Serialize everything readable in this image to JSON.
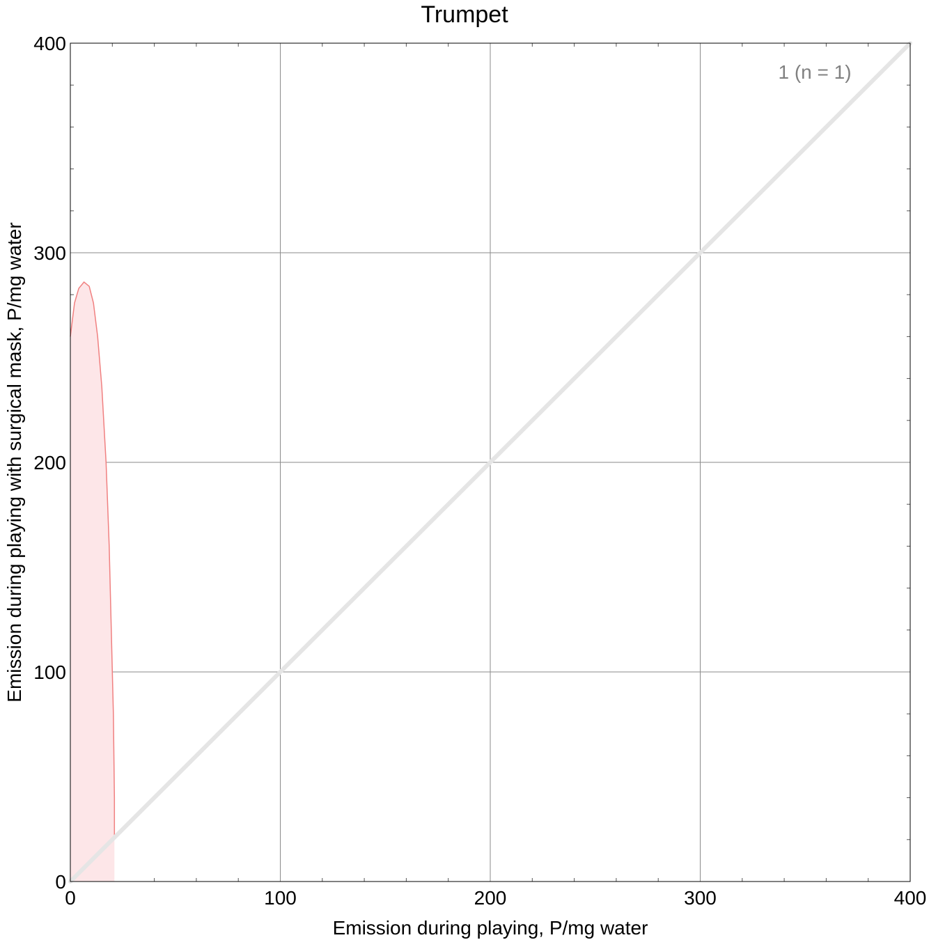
{
  "chart_data": {
    "type": "area",
    "title": "Trumpet",
    "xlabel": "Emission during playing,   P/mg water",
    "ylabel": "Emission during playing with surgical mask,   P/mg water",
    "xlim": [
      0,
      400
    ],
    "ylim": [
      0,
      400
    ],
    "x_ticks": [
      0,
      100,
      200,
      300,
      400
    ],
    "y_ticks": [
      0,
      100,
      200,
      300,
      400
    ],
    "grid": true,
    "annotation": "1  (n = 1)",
    "reference_line": {
      "from": [
        0,
        0
      ],
      "to": [
        400,
        400
      ],
      "color": "#e5e5e5"
    },
    "series": [
      {
        "name": "1  (n = 1)",
        "color": "#f08080",
        "fill": "#fde6e8",
        "outline": [
          [
            0,
            0
          ],
          [
            0,
            260
          ],
          [
            2,
            276
          ],
          [
            4,
            283
          ],
          [
            6.5,
            286
          ],
          [
            9,
            284
          ],
          [
            11,
            276
          ],
          [
            13,
            260
          ],
          [
            15,
            236
          ],
          [
            17,
            200
          ],
          [
            18.5,
            160
          ],
          [
            19.5,
            120
          ],
          [
            20.5,
            80
          ],
          [
            21,
            40
          ],
          [
            21,
            20
          ],
          [
            21,
            0
          ]
        ]
      }
    ]
  }
}
